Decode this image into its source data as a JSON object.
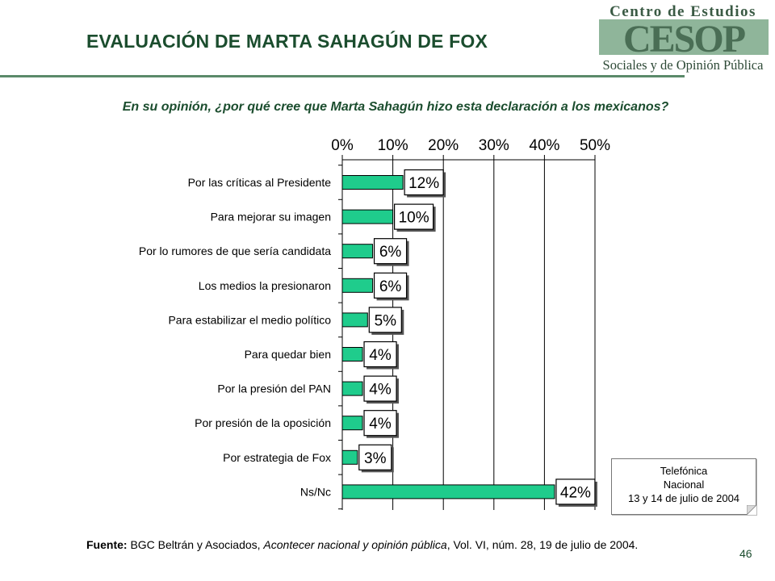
{
  "header": {
    "title": "EVALUACIÓN DE MARTA SAHAGÚN DE FOX",
    "logo_line1": "Centro de Estudios",
    "logo_mark": "CESOP",
    "logo_line2": "Sociales y de Opinión Pública"
  },
  "chart_data": {
    "type": "bar",
    "orientation": "horizontal",
    "title": "En su opinión, ¿por qué cree que Marta Sahagún hizo esta declaración a los mexicanos?",
    "categories": [
      "Por las críticas al Presidente",
      "Para mejorar su imagen",
      "Por lo rumores de que sería candidata",
      "Los medios la presionaron",
      "Para estabilizar el medio político",
      "Para quedar bien",
      "Por la presión del PAN",
      "Por presión de la oposición",
      "Por estrategia de Fox",
      "Ns/Nc"
    ],
    "values": [
      12,
      10,
      6,
      6,
      5,
      4,
      4,
      4,
      3,
      42
    ],
    "data_labels": [
      "12%",
      "10%",
      "6%",
      "6%",
      "5%",
      "4%",
      "4%",
      "4%",
      "3%",
      "42%"
    ],
    "ticks": [
      0,
      10,
      20,
      30,
      40,
      50
    ],
    "tick_labels": [
      "0%",
      "10%",
      "20%",
      "30%",
      "40%",
      "50%"
    ],
    "xlim": [
      0,
      50
    ],
    "axis_position": "top",
    "grid": true,
    "bar_color": "#1fcc8c"
  },
  "note": {
    "line1": "Telefónica",
    "line2": "Nacional",
    "line3": "13 y 14 de julio de 2004"
  },
  "source": {
    "label": "Fuente:",
    "text1": "BGC Beltrán y Asociados, ",
    "italic": "Acontecer nacional y opinión pública",
    "text2": ", Vol. VI, núm. 28, 19 de julio de 2004."
  },
  "page_number": "46"
}
